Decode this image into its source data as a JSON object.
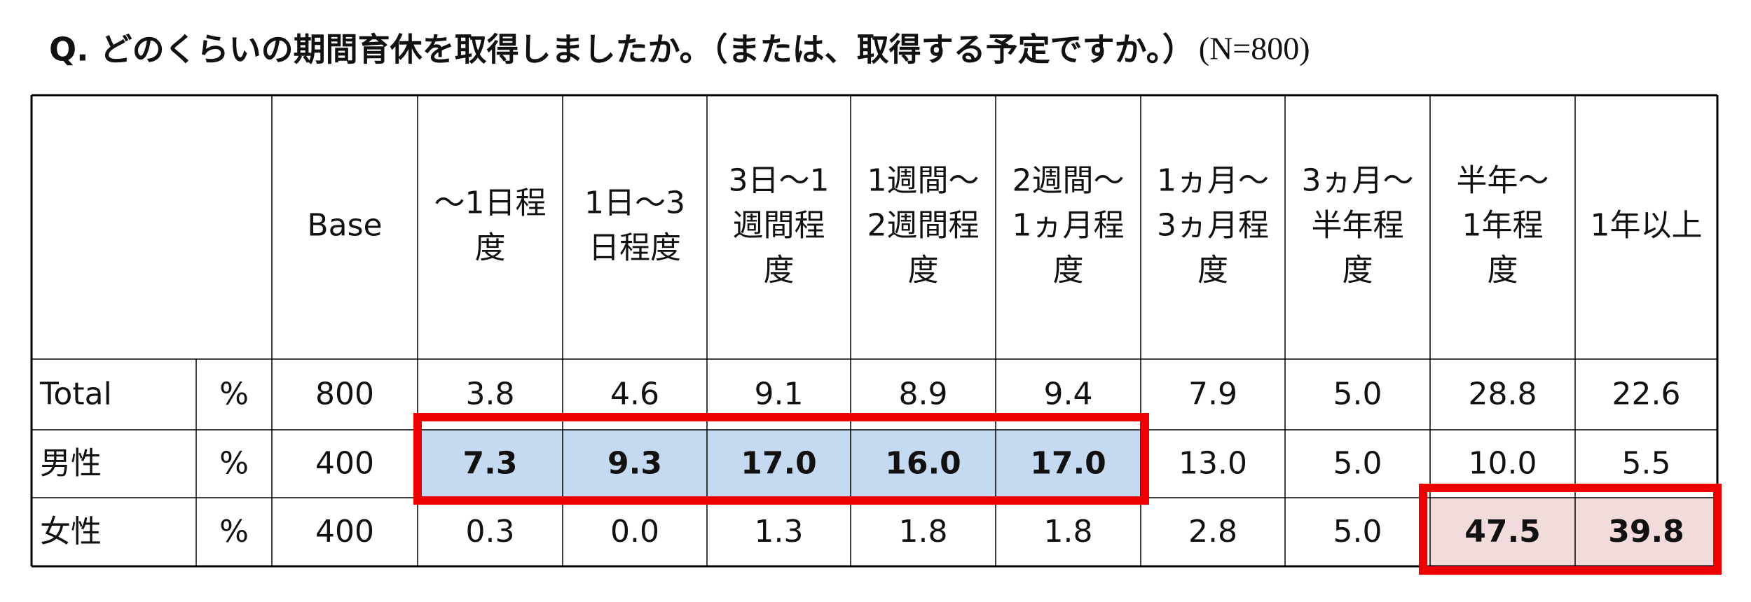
{
  "title": "Q. どのくらいの期間育休を取得しましたか。（または、取得する予定ですか。）",
  "note": "(N=800)",
  "table": {
    "header": [
      [
        "Base"
      ],
      [
        "～1日程",
        "度"
      ],
      [
        "1日～3",
        "日程度"
      ],
      [
        "3日～1",
        "週間程",
        "度"
      ],
      [
        "1週間～",
        "2週間程",
        "度"
      ],
      [
        "2週間～",
        "1ヵ月程",
        "度"
      ],
      [
        "1ヵ月～",
        "3ヵ月程",
        "度"
      ],
      [
        "3ヵ月～",
        "半年程",
        "度"
      ],
      [
        "半年～",
        "1年程",
        "度"
      ],
      [
        "1年以上"
      ]
    ],
    "rows": [
      {
        "label": "Total",
        "unit": "%",
        "base": "800",
        "values": [
          "3.8",
          "4.6",
          "9.1",
          "8.9",
          "9.4",
          "7.9",
          "5.0",
          "28.8",
          "22.6"
        ]
      },
      {
        "label": "男性",
        "unit": "%",
        "base": "400",
        "values": [
          "7.3",
          "9.3",
          "17.0",
          "16.0",
          "17.0",
          "13.0",
          "5.0",
          "10.0",
          "5.5"
        ]
      },
      {
        "label": "女性",
        "unit": "%",
        "base": "400",
        "values": [
          "0.3",
          "0.0",
          "1.3",
          "1.8",
          "1.8",
          "2.8",
          "5.0",
          "47.5",
          "39.8"
        ]
      }
    ]
  }
}
